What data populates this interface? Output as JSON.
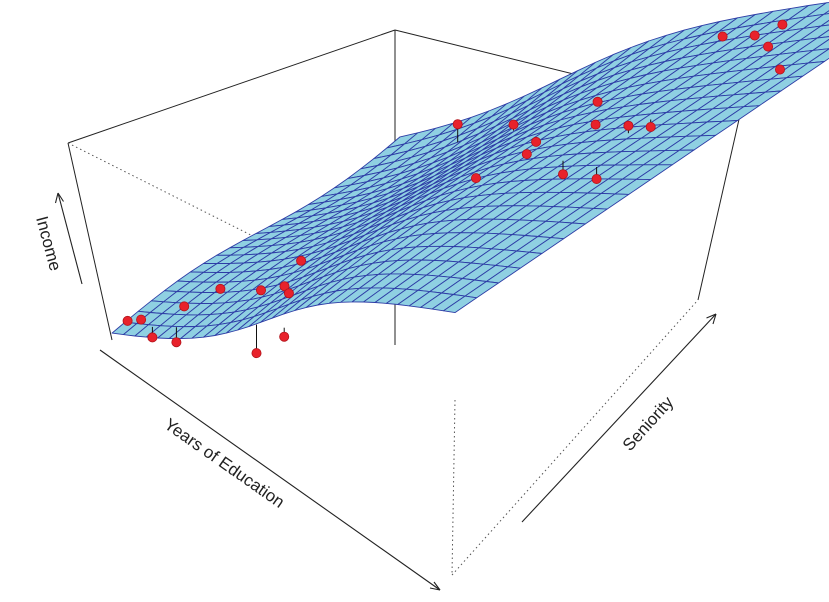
{
  "chart_data": {
    "type": "surface3d",
    "axis_labels": {
      "x": "Years of Education",
      "y": "Seniority",
      "z": "Income"
    },
    "colors": {
      "surface_fill": "#8fd0e2",
      "surface_grid": "#2e3da6",
      "points": "#e8222b",
      "residual_lines": "#111111",
      "box": "#222222"
    },
    "grid": {
      "edu_steps": 30,
      "sen_steps": 22
    },
    "surface": {
      "edu_range": [
        0,
        1
      ],
      "sen_range": [
        0,
        1
      ],
      "income_range": [
        0,
        1
      ],
      "shape": "sigmoid in education plus mild rise in seniority"
    },
    "points": [
      {
        "edu": 0.02,
        "sen": 0.03,
        "income": 0.12,
        "fitted": 0.15
      },
      {
        "edu": 0.05,
        "sen": 0.04,
        "income": 0.13,
        "fitted": 0.16
      },
      {
        "edu": 0.1,
        "sen": 0.02,
        "income": 0.05,
        "fitted": 0.12
      },
      {
        "edu": 0.12,
        "sen": 0.1,
        "income": 0.18,
        "fitted": 0.19
      },
      {
        "edu": 0.16,
        "sen": 0.03,
        "income": 0.03,
        "fitted": 0.13
      },
      {
        "edu": 0.15,
        "sen": 0.18,
        "income": 0.22,
        "fitted": 0.21
      },
      {
        "edu": 0.24,
        "sen": 0.2,
        "income": 0.21,
        "fitted": 0.24
      },
      {
        "edu": 0.3,
        "sen": 0.25,
        "income": 0.36,
        "fitted": 0.34
      },
      {
        "edu": 0.32,
        "sen": 0.18,
        "income": 0.28,
        "fitted": 0.3
      },
      {
        "edu": 0.36,
        "sen": 0.15,
        "income": 0.28,
        "fitted": 0.31
      },
      {
        "edu": 0.4,
        "sen": 0.02,
        "income": 0.06,
        "fitted": 0.25
      },
      {
        "edu": 0.48,
        "sen": 0.02,
        "income": 0.2,
        "fitted": 0.26
      },
      {
        "edu": 0.2,
        "sen": 0.85,
        "income": 0.58,
        "fitted": 0.46
      },
      {
        "edu": 0.42,
        "sen": 0.7,
        "income": 0.7,
        "fitted": 0.66
      },
      {
        "edu": 0.52,
        "sen": 0.48,
        "income": 0.63,
        "fitted": 0.66
      },
      {
        "edu": 0.55,
        "sen": 0.6,
        "income": 0.7,
        "fitted": 0.72
      },
      {
        "edu": 0.6,
        "sen": 0.52,
        "income": 0.73,
        "fitted": 0.74
      },
      {
        "edu": 0.58,
        "sen": 0.72,
        "income": 0.79,
        "fitted": 0.77
      },
      {
        "edu": 0.68,
        "sen": 0.6,
        "income": 0.8,
        "fitted": 0.83
      },
      {
        "edu": 0.75,
        "sen": 0.45,
        "income": 0.7,
        "fitted": 0.79
      },
      {
        "edu": 0.8,
        "sen": 0.55,
        "income": 0.86,
        "fitted": 0.81
      },
      {
        "edu": 0.82,
        "sen": 0.58,
        "income": 0.8,
        "fitted": 0.85
      },
      {
        "edu": 0.86,
        "sen": 0.42,
        "income": 0.72,
        "fitted": 0.8
      },
      {
        "edu": 0.7,
        "sen": 0.88,
        "income": 0.95,
        "fitted": 0.93
      },
      {
        "edu": 0.78,
        "sen": 0.86,
        "income": 0.96,
        "fitted": 0.94
      },
      {
        "edu": 0.8,
        "sen": 0.9,
        "income": 0.96,
        "fitted": 0.95
      },
      {
        "edu": 0.86,
        "sen": 0.8,
        "income": 0.96,
        "fitted": 0.93
      },
      {
        "edu": 0.96,
        "sen": 0.72,
        "income": 0.92,
        "fitted": 0.95
      },
      {
        "edu": 0.95,
        "sen": 0.88,
        "income": 1.0,
        "fitted": 0.98
      },
      {
        "edu": 0.97,
        "sen": 0.98,
        "income": 1.02,
        "fitted": 1.0
      }
    ]
  }
}
